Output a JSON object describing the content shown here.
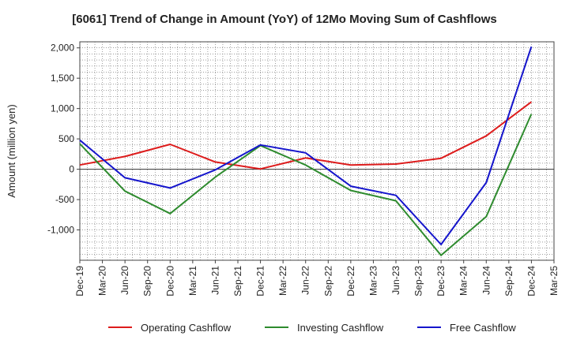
{
  "chart_data": {
    "type": "line",
    "title": "[6061]  Trend of Change in Amount (YoY) of 12Mo Moving Sum of Cashflows",
    "xlabel": "",
    "ylabel": "Amount (million yen)",
    "x": [
      "Dec-19",
      "Mar-20",
      "Jun-20",
      "Sep-20",
      "Dec-20",
      "Mar-21",
      "Jun-21",
      "Sep-21",
      "Dec-21",
      "Mar-22",
      "Jun-22",
      "Sep-22",
      "Dec-22",
      "Mar-23",
      "Jun-23",
      "Sep-23",
      "Dec-23",
      "Mar-24",
      "Jun-24",
      "Sep-24",
      "Dec-24",
      "Mar-25"
    ],
    "ylim": [
      -1500,
      2100
    ],
    "yticks": [
      2000,
      1500,
      1000,
      500,
      0,
      -500,
      -1000
    ],
    "ytick_labels": [
      "2,000",
      "1,500",
      "1,000",
      "500",
      "0",
      "-500",
      "-1,000"
    ],
    "grid": true,
    "legend": "bottom",
    "series": [
      {
        "name": "Operating Cashflow",
        "color": "#dd1c1c",
        "values": [
          70,
          null,
          210,
          null,
          410,
          null,
          120,
          null,
          5,
          null,
          185,
          null,
          70,
          null,
          85,
          null,
          180,
          null,
          550,
          null,
          1110,
          null
        ]
      },
      {
        "name": "Investing Cashflow",
        "color": "#2e8b2e",
        "values": [
          420,
          null,
          -360,
          null,
          -730,
          null,
          -130,
          null,
          390,
          null,
          70,
          null,
          -350,
          null,
          -520,
          null,
          -1420,
          null,
          -780,
          null,
          910,
          null
        ]
      },
      {
        "name": "Free Cashflow",
        "color": "#1515cc",
        "values": [
          480,
          null,
          -140,
          null,
          -310,
          null,
          -10,
          null,
          400,
          null,
          270,
          null,
          -280,
          null,
          -430,
          null,
          -1240,
          null,
          -220,
          null,
          2020,
          null
        ]
      }
    ]
  }
}
